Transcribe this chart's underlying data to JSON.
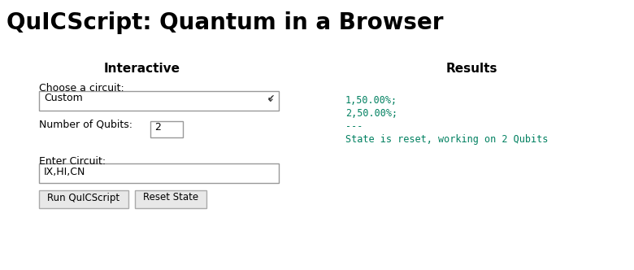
{
  "title": "QuICScript: Quantum in a Browser",
  "title_fontsize": 20,
  "title_fontweight": "bold",
  "background_color": "#ffffff",
  "section_interactive_label": "Interactive",
  "section_results_label": "Results",
  "section_label_fontsize": 11,
  "section_label_fontweight": "bold",
  "choose_circuit_label": "Choose a circuit:",
  "dropdown_text": "Custom",
  "num_qubits_label": "Number of Qubits:",
  "num_qubits_value": "2",
  "enter_circuit_label": "Enter Circuit:",
  "circuit_input_text": "IX,HI,CN",
  "btn1_text": "Run QuICScript",
  "btn2_text": "Reset State",
  "results_line1": "1,50.00%;",
  "results_line2": "2,50.00%;",
  "results_line3": "---",
  "results_line4": "State is reset, working on 2 Qubits",
  "results_color": "#008060",
  "results_fontsize": 8.5
}
